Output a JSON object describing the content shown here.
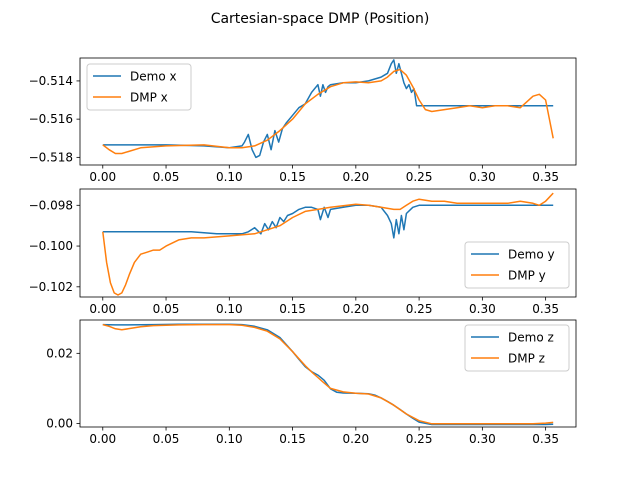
{
  "figure": {
    "title": "Cartesian-space DMP (Position)"
  },
  "chart_data": [
    {
      "type": "line",
      "title": "",
      "xlabel": "",
      "ylabel": "",
      "xlim": [
        -0.018,
        0.374
      ],
      "ylim": [
        -0.5184,
        -0.5128
      ],
      "xticks": [
        0.0,
        0.05,
        0.1,
        0.15,
        0.2,
        0.25,
        0.3,
        0.35
      ],
      "xtick_labels": [
        "0.00",
        "0.05",
        "0.10",
        "0.15",
        "0.20",
        "0.25",
        "0.30",
        "0.35"
      ],
      "yticks": [
        -0.514,
        -0.516,
        -0.518
      ],
      "ytick_labels": [
        "−0.514",
        "−0.516",
        "−0.518"
      ],
      "grid": false,
      "legend_position": "top-left",
      "series": [
        {
          "name": "Demo x",
          "color": "#1f77b4",
          "x": [
            0.0,
            0.02,
            0.05,
            0.08,
            0.1,
            0.11,
            0.112,
            0.115,
            0.118,
            0.121,
            0.124,
            0.127,
            0.13,
            0.133,
            0.136,
            0.139,
            0.142,
            0.145,
            0.15,
            0.155,
            0.16,
            0.165,
            0.17,
            0.172,
            0.174,
            0.176,
            0.178,
            0.18,
            0.19,
            0.2,
            0.21,
            0.22,
            0.225,
            0.228,
            0.23,
            0.232,
            0.234,
            0.236,
            0.238,
            0.24,
            0.242,
            0.244,
            0.246,
            0.248,
            0.25,
            0.26,
            0.3,
            0.35,
            0.356
          ],
          "y": [
            -0.51735,
            -0.51735,
            -0.51735,
            -0.5174,
            -0.5175,
            -0.5174,
            -0.5172,
            -0.5168,
            -0.5176,
            -0.518,
            -0.5179,
            -0.5172,
            -0.5168,
            -0.5176,
            -0.5166,
            -0.5172,
            -0.5165,
            -0.5162,
            -0.5158,
            -0.5154,
            -0.5152,
            -0.5146,
            -0.5142,
            -0.5148,
            -0.5142,
            -0.5146,
            -0.5143,
            -0.5142,
            -0.5141,
            -0.5141,
            -0.514,
            -0.5138,
            -0.5136,
            -0.5131,
            -0.5129,
            -0.5136,
            -0.5131,
            -0.5136,
            -0.5141,
            -0.5144,
            -0.5142,
            -0.5146,
            -0.5144,
            -0.5153,
            -0.5153,
            -0.5153,
            -0.5153,
            -0.5153,
            -0.5153
          ]
        },
        {
          "name": "DMP x",
          "color": "#ff7f0e",
          "x": [
            0.0,
            0.005,
            0.01,
            0.015,
            0.02,
            0.03,
            0.05,
            0.08,
            0.1,
            0.11,
            0.12,
            0.13,
            0.14,
            0.15,
            0.16,
            0.17,
            0.18,
            0.19,
            0.2,
            0.21,
            0.22,
            0.225,
            0.23,
            0.235,
            0.24,
            0.245,
            0.25,
            0.255,
            0.26,
            0.27,
            0.28,
            0.29,
            0.3,
            0.31,
            0.32,
            0.33,
            0.335,
            0.34,
            0.345,
            0.35,
            0.353,
            0.356
          ],
          "y": [
            -0.51735,
            -0.5176,
            -0.5178,
            -0.5178,
            -0.5177,
            -0.5175,
            -0.5174,
            -0.51735,
            -0.5175,
            -0.5175,
            -0.5174,
            -0.5171,
            -0.5166,
            -0.516,
            -0.5152,
            -0.5147,
            -0.5143,
            -0.5141,
            -0.51405,
            -0.5141,
            -0.514,
            -0.5138,
            -0.5135,
            -0.5134,
            -0.5137,
            -0.5143,
            -0.515,
            -0.5155,
            -0.5156,
            -0.5155,
            -0.5154,
            -0.5153,
            -0.5154,
            -0.5153,
            -0.5153,
            -0.5154,
            -0.5151,
            -0.5148,
            -0.5147,
            -0.515,
            -0.516,
            -0.517
          ]
        }
      ]
    },
    {
      "type": "line",
      "title": "",
      "xlabel": "",
      "ylabel": "",
      "xlim": [
        -0.018,
        0.374
      ],
      "ylim": [
        -0.1025,
        -0.0972
      ],
      "xticks": [
        0.0,
        0.05,
        0.1,
        0.15,
        0.2,
        0.25,
        0.3,
        0.35
      ],
      "xtick_labels": [
        "0.00",
        "0.05",
        "0.10",
        "0.15",
        "0.20",
        "0.25",
        "0.30",
        "0.35"
      ],
      "yticks": [
        -0.098,
        -0.1,
        -0.102
      ],
      "ytick_labels": [
        "−0.098",
        "−0.100",
        "−0.102"
      ],
      "grid": false,
      "legend_position": "bottom-right",
      "series": [
        {
          "name": "Demo y",
          "color": "#1f77b4",
          "x": [
            0.0,
            0.02,
            0.05,
            0.07,
            0.09,
            0.1,
            0.11,
            0.115,
            0.12,
            0.125,
            0.128,
            0.131,
            0.134,
            0.137,
            0.14,
            0.143,
            0.146,
            0.15,
            0.155,
            0.16,
            0.165,
            0.17,
            0.172,
            0.175,
            0.178,
            0.18,
            0.19,
            0.2,
            0.21,
            0.22,
            0.225,
            0.228,
            0.23,
            0.232,
            0.234,
            0.236,
            0.238,
            0.24,
            0.245,
            0.25,
            0.26,
            0.3,
            0.35,
            0.356
          ],
          "y": [
            -0.0993,
            -0.0993,
            -0.0993,
            -0.0993,
            -0.0994,
            -0.0994,
            -0.0994,
            -0.0993,
            -0.0991,
            -0.0994,
            -0.0989,
            -0.0992,
            -0.0988,
            -0.0991,
            -0.0986,
            -0.0988,
            -0.0985,
            -0.0984,
            -0.0982,
            -0.0981,
            -0.0981,
            -0.0982,
            -0.0987,
            -0.0981,
            -0.0986,
            -0.0982,
            -0.0981,
            -0.098,
            -0.098,
            -0.0981,
            -0.0985,
            -0.0989,
            -0.0996,
            -0.0987,
            -0.0994,
            -0.0985,
            -0.0992,
            -0.0984,
            -0.0981,
            -0.098,
            -0.098,
            -0.098,
            -0.098,
            -0.098
          ]
        },
        {
          "name": "DMP y",
          "color": "#ff7f0e",
          "x": [
            0.0,
            0.003,
            0.006,
            0.009,
            0.012,
            0.015,
            0.018,
            0.021,
            0.025,
            0.03,
            0.035,
            0.04,
            0.045,
            0.05,
            0.06,
            0.07,
            0.08,
            0.1,
            0.12,
            0.13,
            0.14,
            0.15,
            0.16,
            0.17,
            0.18,
            0.2,
            0.21,
            0.22,
            0.23,
            0.235,
            0.24,
            0.245,
            0.25,
            0.26,
            0.27,
            0.28,
            0.3,
            0.32,
            0.33,
            0.34,
            0.345,
            0.35,
            0.353,
            0.356
          ],
          "y": [
            -0.0993,
            -0.1008,
            -0.1018,
            -0.1023,
            -0.1024,
            -0.1023,
            -0.1019,
            -0.1014,
            -0.1008,
            -0.1004,
            -0.1003,
            -0.1002,
            -0.1002,
            -0.1,
            -0.0997,
            -0.0996,
            -0.0996,
            -0.0995,
            -0.0994,
            -0.0992,
            -0.099,
            -0.0986,
            -0.0983,
            -0.0982,
            -0.0981,
            -0.09795,
            -0.098,
            -0.0981,
            -0.0982,
            -0.0982,
            -0.098,
            -0.0978,
            -0.0977,
            -0.0978,
            -0.0978,
            -0.0979,
            -0.0979,
            -0.0979,
            -0.0978,
            -0.0979,
            -0.098,
            -0.0978,
            -0.0976,
            -0.0974
          ]
        }
      ]
    },
    {
      "type": "line",
      "title": "",
      "xlabel": "",
      "ylabel": "",
      "xlim": [
        -0.018,
        0.374
      ],
      "ylim": [
        -0.001,
        0.0295
      ],
      "xticks": [
        0.0,
        0.05,
        0.1,
        0.15,
        0.2,
        0.25,
        0.3,
        0.35
      ],
      "xtick_labels": [
        "0.00",
        "0.05",
        "0.10",
        "0.15",
        "0.20",
        "0.25",
        "0.30",
        "0.35"
      ],
      "yticks": [
        0.02,
        0.0
      ],
      "ytick_labels": [
        "0.02",
        "0.00"
      ],
      "grid": false,
      "legend_position": "top-right",
      "series": [
        {
          "name": "Demo z",
          "color": "#1f77b4",
          "x": [
            0.0,
            0.01,
            0.02,
            0.04,
            0.06,
            0.08,
            0.1,
            0.11,
            0.12,
            0.13,
            0.14,
            0.15,
            0.155,
            0.16,
            0.165,
            0.17,
            0.175,
            0.18,
            0.185,
            0.19,
            0.2,
            0.21,
            0.215,
            0.22,
            0.225,
            0.23,
            0.235,
            0.24,
            0.245,
            0.25,
            0.26,
            0.3,
            0.35,
            0.356
          ],
          "y": [
            0.0282,
            0.0281,
            0.0281,
            0.0282,
            0.0283,
            0.0283,
            0.0283,
            0.0282,
            0.0277,
            0.0267,
            0.0245,
            0.0205,
            0.0183,
            0.0162,
            0.0148,
            0.0138,
            0.0123,
            0.0099,
            0.0089,
            0.0087,
            0.0086,
            0.0085,
            0.0081,
            0.0073,
            0.0063,
            0.0052,
            0.004,
            0.0027,
            0.0015,
            0.0004,
            -0.0003,
            -0.0003,
            -0.0003,
            -0.0002
          ]
        },
        {
          "name": "DMP z",
          "color": "#ff7f0e",
          "x": [
            0.0,
            0.005,
            0.01,
            0.015,
            0.02,
            0.03,
            0.04,
            0.06,
            0.08,
            0.1,
            0.11,
            0.12,
            0.13,
            0.14,
            0.15,
            0.155,
            0.16,
            0.165,
            0.17,
            0.175,
            0.18,
            0.19,
            0.2,
            0.21,
            0.22,
            0.23,
            0.24,
            0.25,
            0.26,
            0.3,
            0.34,
            0.35,
            0.356
          ],
          "y": [
            0.0282,
            0.0277,
            0.027,
            0.0267,
            0.027,
            0.0276,
            0.0279,
            0.0281,
            0.0282,
            0.0282,
            0.028,
            0.0274,
            0.0263,
            0.0241,
            0.0205,
            0.0185,
            0.0165,
            0.0147,
            0.0131,
            0.0115,
            0.01,
            0.009,
            0.0086,
            0.0084,
            0.0073,
            0.0052,
            0.0027,
            0.0008,
            -0.0001,
            -0.0001,
            -0.0001,
            0.0001,
            0.0003
          ]
        }
      ]
    }
  ]
}
